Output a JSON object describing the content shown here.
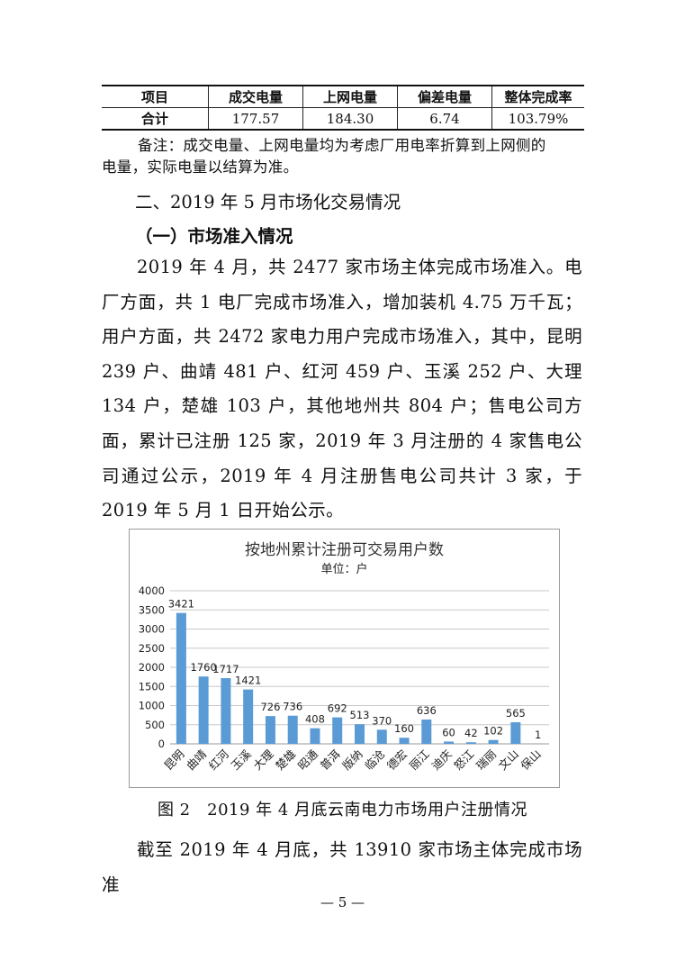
{
  "table": {
    "headers": [
      "项目",
      "成交电量",
      "上网电量",
      "偏差电量",
      "整体完成率"
    ],
    "rows": [
      [
        "合计",
        "177.57",
        "184.30",
        "6.74",
        "103.79%"
      ]
    ]
  },
  "note": [
    "备注：成交电量、上网电量均为考虑厂用电率折算到上网侧的",
    "电量，实际电量以结算为准。"
  ],
  "heading1": "二、2019 年 5 月市场化交易情况",
  "heading2": "（一）市场准入情况",
  "paragraph1": "2019 年 4 月，共 2477 家市场主体完成市场准入。电厂方面，共 1 电厂完成市场准入，增加装机 4.75 万千瓦；用户方面，共 2472 家电力用户完成市场准入，其中，昆明 239 户、曲靖 481 户、红河 459 户、玉溪 252 户、大理 134 户，楚雄 103 户，其他地州共 804 户；售电公司方面，累计已注册 125 家，2019 年 3 月注册的 4 家售电公司通过公示，2019 年 4 月注册售电公司共计 3 家，于 2019 年 5 月 1 日开始公示。",
  "chart_data": {
    "type": "bar",
    "title": "按地州累计注册可交易用户数",
    "subtitle": "单位：户",
    "categories": [
      "昆明",
      "曲靖",
      "红河",
      "玉溪",
      "大理",
      "楚雄",
      "昭通",
      "普洱",
      "版纳",
      "临沧",
      "德宏",
      "丽江",
      "迪庆",
      "怒江",
      "瑞丽",
      "文山",
      "保山"
    ],
    "values": [
      3421,
      1760,
      1717,
      1421,
      726,
      736,
      408,
      692,
      513,
      370,
      160,
      636,
      60,
      42,
      102,
      565,
      1
    ],
    "ylim": [
      0,
      4000
    ],
    "yticks": [
      "0",
      "500",
      "1000",
      "1500",
      "2000",
      "2500",
      "3000",
      "3500",
      "4000"
    ],
    "grid": true,
    "bar_color": "#5b9bd5"
  },
  "caption": "图 2　2019 年 4 月底云南电力市场用户注册情况",
  "paragraph2": "截至 2019 年 4 月底，共 13910 家市场主体完成市场准",
  "page_number": "— 5 —"
}
